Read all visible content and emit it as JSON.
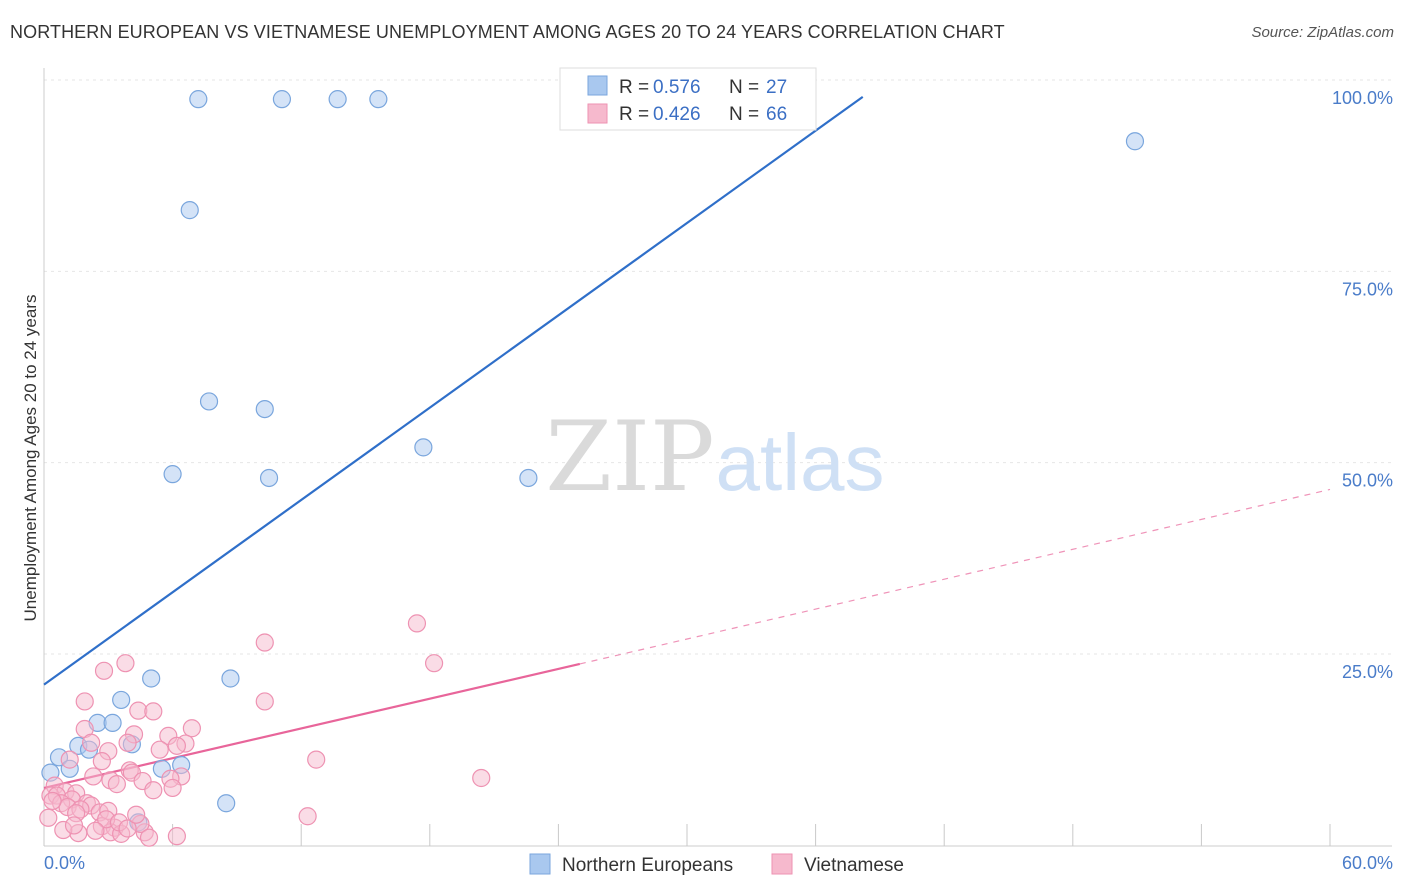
{
  "title": "NORTHERN EUROPEAN VS VIETNAMESE UNEMPLOYMENT AMONG AGES 20 TO 24 YEARS CORRELATION CHART",
  "source": "Source: ZipAtlas.com",
  "watermark": {
    "zip": "ZIP",
    "atlas": "atlas"
  },
  "colors": {
    "blue_fill": "#a9c8ef",
    "blue_stroke": "#7aa6dd",
    "blue_line": "#2f6fc9",
    "pink_fill": "#f6b9cd",
    "pink_stroke": "#ee92b2",
    "pink_line": "#e8659a",
    "tick_text": "#4a7cc9",
    "grid": "#e6e6e6"
  },
  "legend": {
    "rows": [
      {
        "r_label": "R =",
        "r_value": "0.576",
        "n_label": "N =",
        "n_value": "27",
        "series": "blue"
      },
      {
        "r_label": "R =",
        "r_value": "0.426",
        "n_label": "N =",
        "n_value": "66",
        "series": "pink"
      }
    ]
  },
  "chart_data": {
    "type": "scatter",
    "title": "NORTHERN EUROPEAN VS VIETNAMESE UNEMPLOYMENT AMONG AGES 20 TO 24 YEARS CORRELATION CHART",
    "xlabel": "",
    "ylabel": "Unemployment Among Ages 20 to 24 years",
    "xlim": [
      0,
      60
    ],
    "ylim": [
      0,
      103
    ],
    "x_tick_labels": [
      "0.0%",
      "60.0%"
    ],
    "y_ticks": [
      {
        "value": 25,
        "label": "25.0%"
      },
      {
        "value": 50,
        "label": "50.0%"
      },
      {
        "value": 75,
        "label": "75.0%"
      },
      {
        "value": 100,
        "label": "100.0%"
      }
    ],
    "grid": true,
    "series": [
      {
        "name": "Northern Europeans",
        "color": "#a9c8ef",
        "R": 0.576,
        "N": 27,
        "points": [
          [
            7.2,
            97.5
          ],
          [
            11.1,
            97.5
          ],
          [
            13.7,
            97.5
          ],
          [
            15.6,
            97.5
          ],
          [
            50.9,
            92.0
          ],
          [
            6.8,
            83.0
          ],
          [
            7.7,
            58.0
          ],
          [
            10.3,
            57.0
          ],
          [
            17.7,
            52.0
          ],
          [
            6.0,
            48.5
          ],
          [
            10.5,
            48.0
          ],
          [
            22.6,
            48.0
          ],
          [
            5.0,
            21.8
          ],
          [
            8.7,
            21.8
          ],
          [
            3.6,
            19.0
          ],
          [
            2.5,
            16.0
          ],
          [
            3.2,
            16.0
          ],
          [
            4.1,
            13.2
          ],
          [
            1.6,
            13.0
          ],
          [
            0.7,
            11.5
          ],
          [
            1.2,
            10.0
          ],
          [
            6.4,
            10.5
          ],
          [
            2.1,
            12.5
          ],
          [
            0.3,
            9.5
          ],
          [
            5.5,
            10.0
          ],
          [
            8.5,
            5.5
          ],
          [
            4.4,
            3.0
          ]
        ],
        "trend": {
          "x1": 0.0,
          "y1": 21.0,
          "x2": 38.2,
          "y2": 97.8,
          "style": "solid"
        }
      },
      {
        "name": "Vietnamese",
        "color": "#f6b9cd",
        "R": 0.426,
        "N": 66,
        "points": [
          [
            17.4,
            29.0
          ],
          [
            10.3,
            26.5
          ],
          [
            18.2,
            23.8
          ],
          [
            3.8,
            23.8
          ],
          [
            2.8,
            22.8
          ],
          [
            10.3,
            18.8
          ],
          [
            1.9,
            18.8
          ],
          [
            4.4,
            17.6
          ],
          [
            5.1,
            17.5
          ],
          [
            6.9,
            15.3
          ],
          [
            1.9,
            15.2
          ],
          [
            4.2,
            14.5
          ],
          [
            5.8,
            14.3
          ],
          [
            3.9,
            13.4
          ],
          [
            2.2,
            13.4
          ],
          [
            5.4,
            12.5
          ],
          [
            6.6,
            13.3
          ],
          [
            6.2,
            13.0
          ],
          [
            3.0,
            12.3
          ],
          [
            1.2,
            11.2
          ],
          [
            12.7,
            11.2
          ],
          [
            2.7,
            11.0
          ],
          [
            4.0,
            9.8
          ],
          [
            4.1,
            9.5
          ],
          [
            6.4,
            9.0
          ],
          [
            2.3,
            9.0
          ],
          [
            5.9,
            8.7
          ],
          [
            3.1,
            8.5
          ],
          [
            3.4,
            8.0
          ],
          [
            4.6,
            8.4
          ],
          [
            5.1,
            7.2
          ],
          [
            0.5,
            7.8
          ],
          [
            6.0,
            7.5
          ],
          [
            1.0,
            7.0
          ],
          [
            1.5,
            6.8
          ],
          [
            20.4,
            8.8
          ],
          [
            0.3,
            6.5
          ],
          [
            0.6,
            6.5
          ],
          [
            1.3,
            6.0
          ],
          [
            2.0,
            5.5
          ],
          [
            2.2,
            5.2
          ],
          [
            0.8,
            5.5
          ],
          [
            1.1,
            5.0
          ],
          [
            0.4,
            5.8
          ],
          [
            1.7,
            4.7
          ],
          [
            2.6,
            4.3
          ],
          [
            3.0,
            4.5
          ],
          [
            1.5,
            4.2
          ],
          [
            12.3,
            3.8
          ],
          [
            2.7,
            2.5
          ],
          [
            3.3,
            2.3
          ],
          [
            3.1,
            1.7
          ],
          [
            4.7,
            1.7
          ],
          [
            4.5,
            2.8
          ],
          [
            1.6,
            1.6
          ],
          [
            3.6,
            1.5
          ],
          [
            4.9,
            1.0
          ],
          [
            6.2,
            1.2
          ],
          [
            2.9,
            3.4
          ],
          [
            3.5,
            3.0
          ],
          [
            0.9,
            2.0
          ],
          [
            2.4,
            1.9
          ],
          [
            3.9,
            2.2
          ],
          [
            1.4,
            2.6
          ],
          [
            0.2,
            3.6
          ],
          [
            4.3,
            4.0
          ]
        ],
        "trend": {
          "x1": 0.0,
          "y1": 7.5,
          "x2": 25.0,
          "y2": 23.7,
          "style": "solid"
        },
        "trend_extension": {
          "x1": 25.0,
          "y1": 23.7,
          "x2": 60.0,
          "y2": 46.5,
          "style": "dashed"
        }
      }
    ],
    "legend_entries": [
      "Northern Europeans",
      "Vietnamese"
    ]
  }
}
